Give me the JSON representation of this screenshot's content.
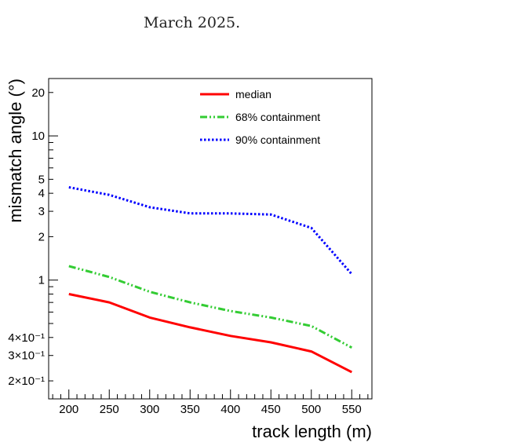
{
  "caption": "March 2025.",
  "chart_data": {
    "type": "line",
    "xlabel": "track length (m)",
    "ylabel": "mismatch angle (°)",
    "xlim": [
      175,
      575
    ],
    "ylim": [
      0.15,
      25
    ],
    "y_scale": "log",
    "grid": false,
    "legend_position": "top-right",
    "x": [
      200,
      250,
      300,
      350,
      400,
      450,
      500,
      550
    ],
    "x_ticks": [
      "200",
      "250",
      "300",
      "350",
      "400",
      "450",
      "500",
      "550"
    ],
    "y_ticks": [
      {
        "value": 0.2,
        "label": "2×10⁻¹"
      },
      {
        "value": 0.3,
        "label": "3×10⁻¹"
      },
      {
        "value": 0.4,
        "label": "4×10⁻¹"
      },
      {
        "value": 1,
        "label": "1"
      },
      {
        "value": 2,
        "label": "2"
      },
      {
        "value": 3,
        "label": "3"
      },
      {
        "value": 4,
        "label": "4"
      },
      {
        "value": 5,
        "label": "5"
      },
      {
        "value": 10,
        "label": "10"
      },
      {
        "value": 20,
        "label": "20"
      }
    ],
    "series": [
      {
        "name": "median",
        "color": "#ff0000",
        "style": "solid",
        "values": [
          0.8,
          0.7,
          0.55,
          0.47,
          0.41,
          0.37,
          0.32,
          0.23
        ]
      },
      {
        "name": "68% containment",
        "color": "#33cc33",
        "style": "dash-dot",
        "values": [
          1.25,
          1.05,
          0.83,
          0.7,
          0.61,
          0.55,
          0.48,
          0.34
        ]
      },
      {
        "name": "90% containment",
        "color": "#0000ff",
        "style": "dotted",
        "values": [
          4.4,
          3.9,
          3.2,
          2.9,
          2.9,
          2.85,
          2.3,
          1.1
        ]
      }
    ]
  }
}
